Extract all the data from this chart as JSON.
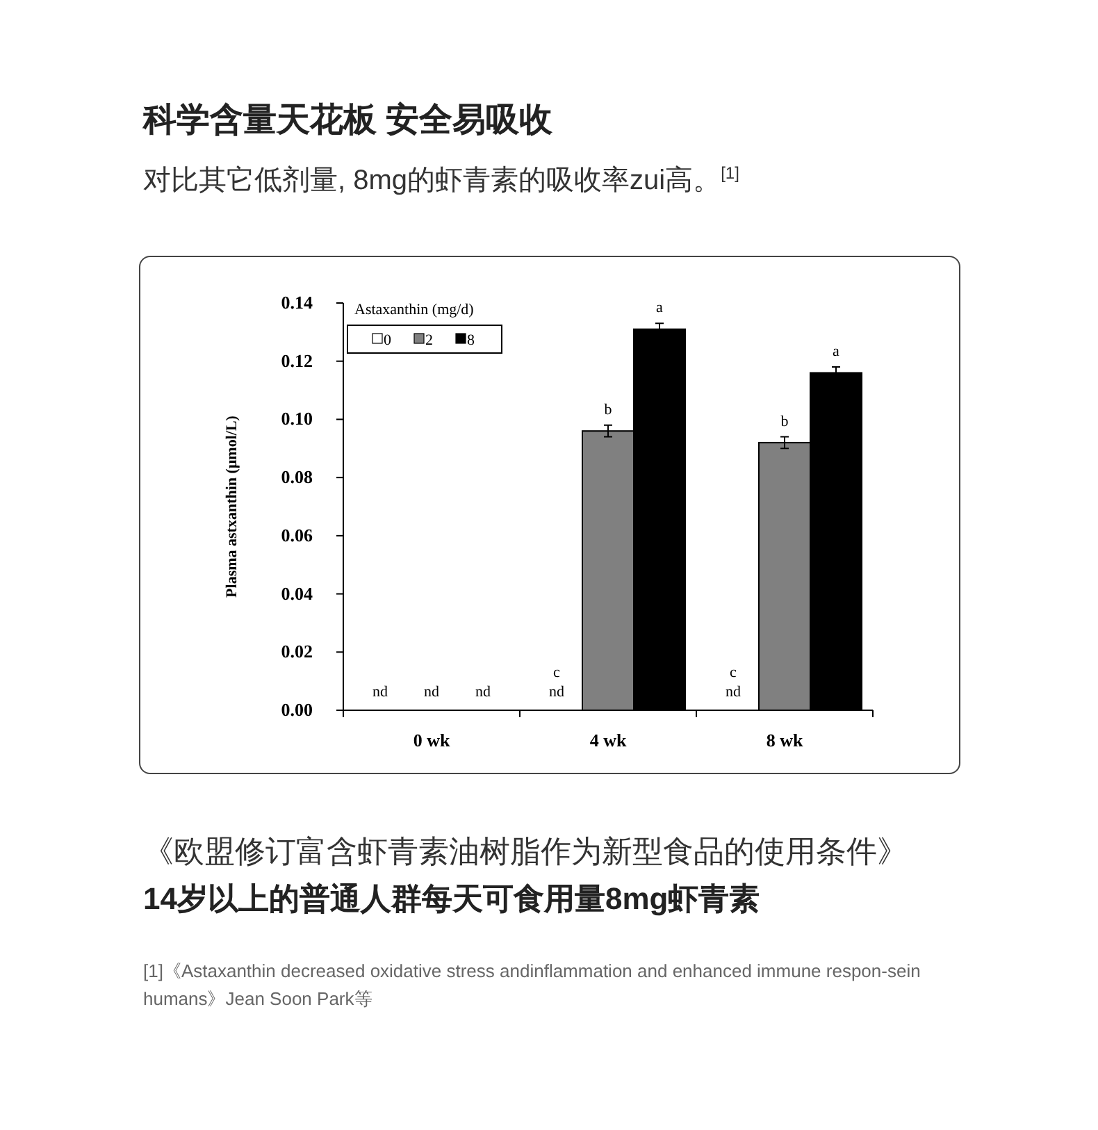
{
  "chart_data": {
    "type": "bar",
    "title": "科学含量天花板 安全易吸收",
    "subtitle": "对比其它低剂量, 8mg的虾青素的吸收率zui高。$^{[1]}$",
    "ylabel": "Plasma astxanthin (μmol/L)",
    "legend_title": "Astaxanthin (mg/d)",
    "legend": "top left",
    "categories": [
      "0 wk",
      "4 wk",
      "8 wk"
    ],
    "series": [
      {
        "name": "0",
        "color": "#ffffff",
        "values": [
          0,
          0,
          0
        ],
        "value_labels": [
          "nd",
          "c\nnd",
          "c\nnd"
        ]
      },
      {
        "name": "2",
        "color": "#808080",
        "values": [
          0,
          0.096,
          0.092
        ],
        "errors": [
          null,
          0.002,
          0.002
        ],
        "value_labels": [
          "nd",
          "b",
          "b"
        ]
      },
      {
        "name": "8",
        "color": "#000000",
        "values": [
          0,
          0.131,
          0.116
        ],
        "errors": [
          null,
          0.002,
          0.002
        ],
        "value_labels": [
          "nd",
          "a",
          "a"
        ]
      }
    ],
    "ylim": [
      0,
      0.14
    ],
    "yticks": [
      {
        "value": 0,
        "label": "0.00"
      },
      {
        "value": 0.02,
        "label": "0.02"
      },
      {
        "value": 0.04,
        "label": "0.04"
      },
      {
        "value": 0.06,
        "label": "0.06"
      },
      {
        "value": 0.08,
        "label": "0.08"
      },
      {
        "value": 0.1,
        "label": "0.10"
      },
      {
        "value": 0.12,
        "label": "0.12"
      },
      {
        "value": 0.14,
        "label": "0.14"
      }
    ],
    "grid": false,
    "annotations": [
      "《欧盟修订富含虾青素油树脂作为新型食品的使用条件》",
      "14岁以上的普通人群每天可食用量8mg虾青素",
      "[1]《Astaxanthin decreased oxidative stress andinflammation and enhanced immune respon-sein humans》Jean Soon Park等"
    ]
  }
}
